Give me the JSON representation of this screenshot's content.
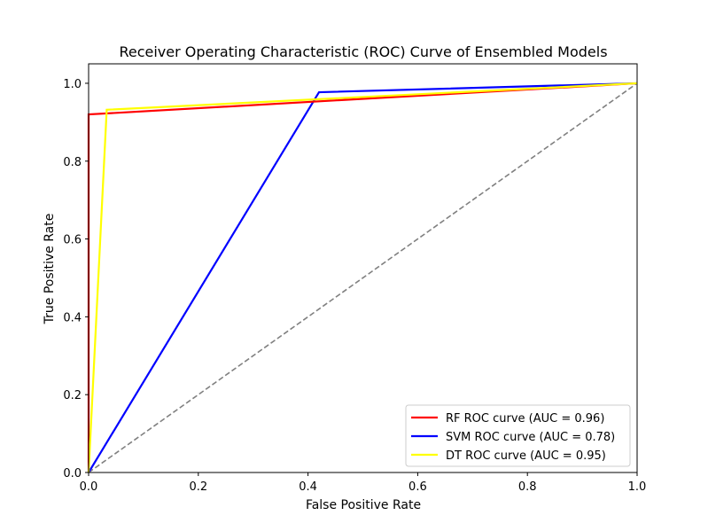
{
  "chart_data": {
    "type": "line",
    "title": "Receiver Operating Characteristic (ROC) Curve of Ensembled Models",
    "xlabel": "False Positive Rate",
    "ylabel": "True Positive Rate",
    "xlim": [
      0.0,
      1.0
    ],
    "ylim": [
      0.0,
      1.05
    ],
    "xticks": [
      0.0,
      0.2,
      0.4,
      0.6,
      0.8,
      1.0
    ],
    "yticks": [
      0.0,
      0.2,
      0.4,
      0.6,
      0.8,
      1.0
    ],
    "xtick_labels": [
      "0.0",
      "0.2",
      "0.4",
      "0.6",
      "0.8",
      "1.0"
    ],
    "ytick_labels": [
      "0.0",
      "0.2",
      "0.4",
      "0.6",
      "0.8",
      "1.0"
    ],
    "grid": false,
    "legend_position": "lower-right",
    "series": [
      {
        "name": "RF ROC curve (AUC = 0.96)",
        "color": "#ff0000",
        "x": [
          0.0,
          0.0,
          1.0
        ],
        "y": [
          0.0,
          0.92,
          1.0
        ]
      },
      {
        "name": "SVM ROC curve (AUC = 0.78)",
        "color": "#0000ff",
        "x": [
          0.0,
          0.42,
          1.0
        ],
        "y": [
          0.0,
          0.977,
          1.0
        ]
      },
      {
        "name": "DT ROC curve (AUC = 0.95)",
        "color": "#ffff00",
        "x": [
          0.0,
          0.033,
          1.0
        ],
        "y": [
          0.0,
          0.932,
          1.0
        ]
      }
    ],
    "reference_line": {
      "x": [
        0.0,
        1.0
      ],
      "y": [
        0.0,
        1.0
      ],
      "color": "#808080",
      "style": "dashed"
    }
  }
}
